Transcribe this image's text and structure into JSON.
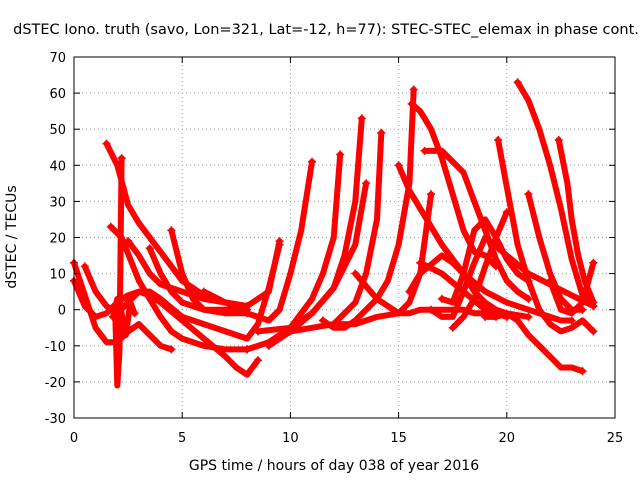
{
  "chart_data": {
    "type": "line",
    "title": "dSTEC Iono. truth (savo, Lon=321, Lat=-12, h=77): STEC-STEC_elemax in phase cont.",
    "xlabel": "GPS time / hours of day 038 of year 2016",
    "ylabel": "dSTEC  / TECUs",
    "xlim": [
      0,
      25
    ],
    "ylim": [
      -30,
      70
    ],
    "xticks": [
      0,
      5,
      10,
      15,
      20,
      25
    ],
    "yticks": [
      -30,
      -20,
      -10,
      0,
      10,
      20,
      30,
      40,
      50,
      60,
      70
    ],
    "grid": true,
    "marker": "+",
    "series_color": "#ff0000",
    "series": [
      {
        "x": [
          0.0,
          0.5,
          1.0,
          1.5,
          2.0,
          2.5,
          3.0,
          3.5,
          4.0,
          4.5
        ],
        "y": [
          13,
          4,
          -5,
          -9,
          -9,
          -6,
          -4,
          -7,
          -10,
          -11
        ]
      },
      {
        "x": [
          0.0,
          0.5,
          1.0,
          1.5,
          2.0,
          2.5,
          3.0,
          3.5,
          4.0,
          5.0,
          6.0,
          7.0,
          7.5,
          8.0,
          8.5
        ],
        "y": [
          8,
          1,
          -2,
          -1,
          2,
          4,
          5,
          4,
          2,
          -3,
          -8,
          -13,
          -16,
          -18,
          -14
        ]
      },
      {
        "x": [
          0.5,
          1.0,
          1.5,
          2.0,
          2.5,
          3.0,
          3.5,
          4.0,
          5.0,
          6.0,
          7.0,
          8.0,
          8.5,
          9.0,
          9.5
        ],
        "y": [
          12,
          5,
          1,
          -1,
          2,
          5,
          5,
          3,
          -2,
          -4,
          -6,
          -8,
          -4,
          6,
          18
        ]
      },
      {
        "x": [
          1.5,
          2.0,
          2.5,
          3.0,
          4.0,
          5.0,
          6.0,
          7.0,
          8.0,
          9.0,
          9.5
        ],
        "y": [
          46,
          40,
          29,
          24,
          16,
          8,
          4,
          2,
          1,
          5,
          19
        ]
      },
      {
        "x": [
          1.7,
          2.2,
          2.6,
          3.0,
          3.5,
          4.0,
          4.5,
          5.0,
          6.0,
          7.0,
          8.0
        ],
        "y": [
          23,
          20,
          14,
          8,
          3,
          -2,
          -6,
          -8,
          -10,
          -11,
          -11
        ]
      },
      {
        "x": [
          1.9,
          2.0,
          2.1,
          2.2
        ],
        "y": [
          0,
          -21,
          -12,
          42
        ]
      },
      {
        "x": [
          1.8,
          2.0,
          2.2,
          2.4,
          2.6,
          2.8
        ],
        "y": [
          -2,
          3,
          -1,
          -7,
          2,
          -1
        ]
      },
      {
        "x": [
          2.5,
          3.0,
          3.5,
          4.0,
          4.5,
          5.0,
          6.0,
          7.0,
          8.0
        ],
        "y": [
          19,
          15,
          10,
          7,
          6,
          5,
          3,
          2,
          1
        ]
      },
      {
        "x": [
          3.5,
          4.0,
          4.5,
          5.0,
          6.0,
          7.0,
          8.0
        ],
        "y": [
          17,
          10,
          5,
          2,
          0,
          -1,
          -1
        ]
      },
      {
        "x": [
          4.5,
          5.0,
          5.5,
          6.0,
          7.0,
          8.0
        ],
        "y": [
          22,
          10,
          3,
          0,
          0,
          0
        ]
      },
      {
        "x": [
          6.0,
          7.0,
          8.0,
          9.0,
          9.5,
          10.0,
          10.5,
          11.0
        ],
        "y": [
          5,
          2,
          -1,
          -3,
          0,
          10,
          22,
          41
        ]
      },
      {
        "x": [
          8.0,
          9.0,
          10.0,
          11.0,
          11.5,
          12.0,
          12.3
        ],
        "y": [
          -11,
          -9,
          -5,
          3,
          10,
          20,
          43
        ]
      },
      {
        "x": [
          9.0,
          10.0,
          11.0,
          12.0,
          12.5,
          13.0,
          13.3
        ],
        "y": [
          -10,
          -6,
          -1,
          6,
          15,
          30,
          53
        ]
      },
      {
        "x": [
          8.5,
          10.0,
          11.0,
          12.0,
          13.0,
          13.5
        ],
        "y": [
          -6,
          -5,
          -1,
          6,
          18,
          35
        ]
      },
      {
        "x": [
          10.0,
          11.0,
          12.0,
          13.0,
          13.5,
          14.0,
          14.2
        ],
        "y": [
          -6,
          -5,
          -4,
          2,
          10,
          25,
          49
        ]
      },
      {
        "x": [
          11.5,
          12.0,
          12.5,
          13.0,
          13.5,
          14.0,
          14.5,
          15.0,
          15.5,
          15.7
        ],
        "y": [
          -3,
          -5,
          -5,
          -3,
          0,
          3,
          8,
          18,
          35,
          61
        ]
      },
      {
        "x": [
          12.0,
          13.0,
          14.0,
          15.0,
          15.5,
          16.0,
          16.5
        ],
        "y": [
          -4,
          -4,
          -2,
          -1,
          2,
          10,
          32
        ]
      },
      {
        "x": [
          13.0,
          14.0,
          15.0,
          15.5,
          16.0,
          17.0,
          18.0,
          18.5,
          19.0,
          19.5
        ],
        "y": [
          10,
          3,
          -1,
          -1,
          0,
          0,
          0,
          -1,
          -1,
          -2
        ]
      },
      {
        "x": [
          15.0,
          15.5,
          16.0,
          17.0,
          18.0,
          18.5,
          19.0,
          19.5,
          20.0,
          21.0
        ],
        "y": [
          40,
          33,
          28,
          18,
          10,
          5,
          2,
          0,
          -1,
          -2
        ]
      },
      {
        "x": [
          15.6,
          16.0,
          16.5,
          17.0,
          17.5,
          18.0,
          18.5,
          19.0,
          19.5
        ],
        "y": [
          57,
          55,
          50,
          42,
          32,
          22,
          16,
          15,
          12
        ]
      },
      {
        "x": [
          16.0,
          17.0,
          18.0,
          19.0,
          19.5,
          20.0
        ],
        "y": [
          13,
          10,
          5,
          0,
          -1,
          -2
        ]
      },
      {
        "x": [
          16.2,
          17.0,
          18.0,
          18.5,
          19.0,
          19.5,
          20.0,
          20.5,
          21.0
        ],
        "y": [
          44,
          44,
          38,
          30,
          22,
          14,
          8,
          5,
          3
        ]
      },
      {
        "x": [
          15.5,
          16.0,
          17.0,
          17.5,
          18.0,
          19.0,
          20.0,
          21.0,
          22.0,
          22.5,
          23.0
        ],
        "y": [
          5,
          10,
          15,
          13,
          10,
          5,
          2,
          0,
          -2,
          -3,
          -3
        ]
      },
      {
        "x": [
          16.5,
          17.0,
          17.5,
          18.0,
          18.5,
          19.0,
          20.0,
          21.0,
          22.0,
          23.0,
          24.0
        ],
        "y": [
          0,
          -2,
          -2,
          5,
          13,
          20,
          15,
          10,
          7,
          4,
          1
        ]
      },
      {
        "x": [
          17.5,
          18.0,
          18.5,
          19.0,
          19.5,
          20.0
        ],
        "y": [
          -5,
          -2,
          3,
          12,
          20,
          27
        ]
      },
      {
        "x": [
          17.0,
          17.5,
          18.0,
          18.5,
          19.0,
          19.5,
          20.0,
          20.5,
          21.0
        ],
        "y": [
          3,
          2,
          10,
          22,
          25,
          20,
          14,
          10,
          8
        ]
      },
      {
        "x": [
          19.6,
          20.0,
          20.5,
          21.0,
          21.5,
          22.0,
          22.5,
          23.0,
          23.5,
          24.0
        ],
        "y": [
          47,
          34,
          18,
          8,
          0,
          -4,
          -6,
          -5,
          -3,
          -6
        ]
      },
      {
        "x": [
          20.5,
          21.0,
          21.5,
          22.0,
          22.5,
          23.0,
          23.5,
          24.0
        ],
        "y": [
          63,
          58,
          50,
          40,
          28,
          14,
          4,
          1
        ]
      },
      {
        "x": [
          22.0,
          22.5,
          23.0,
          23.5,
          24.0
        ],
        "y": [
          8,
          0,
          -1,
          2,
          13
        ]
      },
      {
        "x": [
          22.4,
          22.8,
          23.0,
          23.3,
          23.6,
          24.0
        ],
        "y": [
          47,
          35,
          25,
          15,
          8,
          2
        ]
      },
      {
        "x": [
          21.0,
          21.5,
          22.0,
          22.5,
          23.0,
          23.5
        ],
        "y": [
          32,
          20,
          10,
          3,
          0,
          0
        ]
      },
      {
        "x": [
          19.0,
          19.5,
          20.0,
          20.5,
          21.0,
          21.5,
          22.0,
          22.5,
          23.0,
          23.5
        ],
        "y": [
          -2,
          -2,
          -1,
          -3,
          -7,
          -10,
          -13,
          -16,
          -16,
          -17
        ]
      }
    ]
  }
}
